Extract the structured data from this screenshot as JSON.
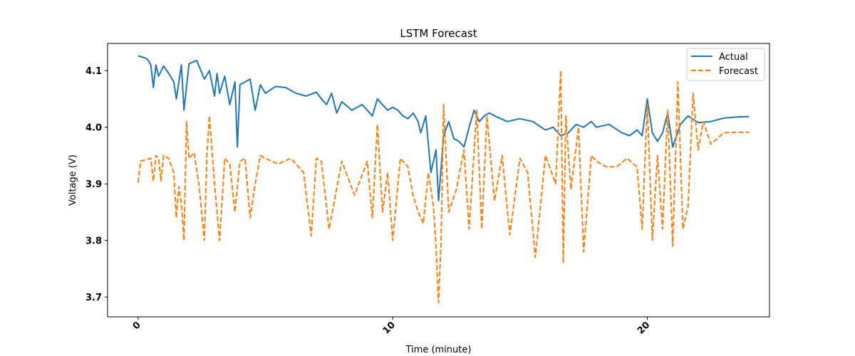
{
  "chart_data": {
    "type": "line",
    "title": "LSTM Forecast",
    "xlabel": "Time (minute)",
    "ylabel": "Voltage (V)",
    "xlim": [
      -1.2,
      24.8
    ],
    "ylim": [
      3.665,
      4.148
    ],
    "xticks": [
      0,
      10,
      20
    ],
    "yticks": [
      3.7,
      3.8,
      3.9,
      4.0,
      4.1
    ],
    "grid": false,
    "legend": "top-right",
    "series": [
      {
        "name": "Actual",
        "color": "#1f77b4",
        "style": "solid",
        "x": [
          0.0,
          0.3,
          0.4,
          0.5,
          0.6,
          0.7,
          0.8,
          1.0,
          1.2,
          1.4,
          1.5,
          1.7,
          1.8,
          2.0,
          2.3,
          2.6,
          2.8,
          3.0,
          3.1,
          3.2,
          3.4,
          3.6,
          3.8,
          3.9,
          4.0,
          4.2,
          4.4,
          4.6,
          4.8,
          5.0,
          5.4,
          5.8,
          6.2,
          6.6,
          7.0,
          7.2,
          7.4,
          7.6,
          7.8,
          8.0,
          8.4,
          8.8,
          9.0,
          9.2,
          9.4,
          9.6,
          9.8,
          10.0,
          10.2,
          10.4,
          10.6,
          10.8,
          11.0,
          11.1,
          11.3,
          11.5,
          11.7,
          11.8,
          12.0,
          12.2,
          12.4,
          12.6,
          12.8,
          13.0,
          13.2,
          13.4,
          13.6,
          13.8,
          14.0,
          14.5,
          15.0,
          15.5,
          16.0,
          16.3,
          16.6,
          16.9,
          17.2,
          17.5,
          17.8,
          18.0,
          18.5,
          19.0,
          19.3,
          19.6,
          19.8,
          20.0,
          20.2,
          20.4,
          20.6,
          20.8,
          21.0,
          21.3,
          21.6,
          22.0,
          22.5,
          23.0,
          23.5,
          24.0
        ],
        "y": [
          4.126,
          4.122,
          4.118,
          4.11,
          4.07,
          4.11,
          4.09,
          4.108,
          4.095,
          4.08,
          4.05,
          4.11,
          4.03,
          4.112,
          4.118,
          4.085,
          4.1,
          4.055,
          4.095,
          4.06,
          4.09,
          4.04,
          4.08,
          3.965,
          4.075,
          4.08,
          4.085,
          4.03,
          4.075,
          4.06,
          4.072,
          4.07,
          4.06,
          4.055,
          4.062,
          4.05,
          4.04,
          4.06,
          4.025,
          4.045,
          4.03,
          4.04,
          4.03,
          4.02,
          4.05,
          4.04,
          4.03,
          4.035,
          4.03,
          4.02,
          4.015,
          4.025,
          4.01,
          3.99,
          4.02,
          3.92,
          3.96,
          3.87,
          3.985,
          4.01,
          3.98,
          3.975,
          3.965,
          4.0,
          4.03,
          4.01,
          4.02,
          4.025,
          4.02,
          4.01,
          4.015,
          4.01,
          3.995,
          4.0,
          3.985,
          3.99,
          4.005,
          4.0,
          4.01,
          4.0,
          4.005,
          3.99,
          3.985,
          3.995,
          3.985,
          4.05,
          3.99,
          3.975,
          3.99,
          4.025,
          3.965,
          4.005,
          4.02,
          4.008,
          4.01,
          4.016,
          4.018,
          4.019
        ]
      },
      {
        "name": "Forecast",
        "color": "#ff7f0e",
        "style": "dashed",
        "x": [
          0.0,
          0.1,
          0.5,
          0.6,
          0.7,
          0.8,
          0.9,
          1.0,
          1.2,
          1.4,
          1.5,
          1.6,
          1.7,
          1.8,
          1.9,
          2.0,
          2.2,
          2.4,
          2.6,
          2.7,
          2.8,
          3.0,
          3.2,
          3.4,
          3.6,
          3.8,
          4.0,
          4.2,
          4.4,
          4.6,
          4.8,
          5.0,
          5.5,
          6.0,
          6.5,
          6.8,
          7.0,
          7.2,
          7.5,
          8.0,
          8.5,
          9.0,
          9.2,
          9.4,
          9.6,
          9.8,
          10.0,
          10.3,
          10.6,
          10.8,
          11.0,
          11.2,
          11.4,
          11.6,
          11.7,
          11.8,
          11.9,
          12.0,
          12.2,
          12.5,
          12.8,
          13.0,
          13.3,
          13.5,
          13.7,
          14.0,
          14.3,
          14.6,
          15.0,
          15.3,
          15.6,
          16.0,
          16.4,
          16.6,
          16.7,
          16.8,
          17.0,
          17.3,
          17.5,
          17.8,
          18.0,
          18.4,
          18.8,
          19.2,
          19.6,
          19.8,
          20.0,
          20.2,
          20.4,
          20.6,
          20.8,
          21.0,
          21.2,
          21.4,
          21.6,
          21.8,
          22.0,
          22.2,
          22.5,
          23.0,
          23.5,
          24.0
        ],
        "y": [
          3.902,
          3.94,
          3.945,
          3.905,
          3.95,
          3.945,
          3.905,
          3.95,
          3.945,
          3.92,
          3.84,
          3.895,
          3.865,
          3.8,
          4.01,
          3.945,
          3.955,
          3.895,
          3.8,
          3.95,
          4.02,
          3.9,
          3.8,
          3.945,
          3.935,
          3.85,
          3.94,
          3.945,
          3.84,
          3.9,
          3.95,
          3.945,
          3.935,
          3.945,
          3.92,
          3.808,
          3.945,
          3.94,
          3.82,
          3.94,
          3.88,
          3.94,
          3.84,
          4.005,
          3.85,
          3.92,
          3.8,
          3.945,
          3.93,
          3.88,
          3.85,
          3.83,
          3.92,
          3.86,
          3.79,
          3.69,
          3.8,
          4.04,
          3.85,
          3.89,
          3.96,
          3.82,
          4.03,
          3.82,
          4.02,
          3.87,
          3.95,
          3.81,
          3.945,
          3.92,
          3.77,
          3.95,
          3.9,
          4.1,
          3.76,
          4.02,
          3.89,
          4.0,
          3.78,
          3.95,
          3.94,
          3.93,
          3.93,
          3.945,
          3.93,
          3.82,
          4.04,
          3.8,
          3.95,
          3.82,
          4.03,
          3.79,
          4.08,
          3.82,
          3.86,
          4.06,
          3.96,
          4.01,
          3.97,
          3.99,
          3.991,
          3.991
        ]
      }
    ]
  }
}
